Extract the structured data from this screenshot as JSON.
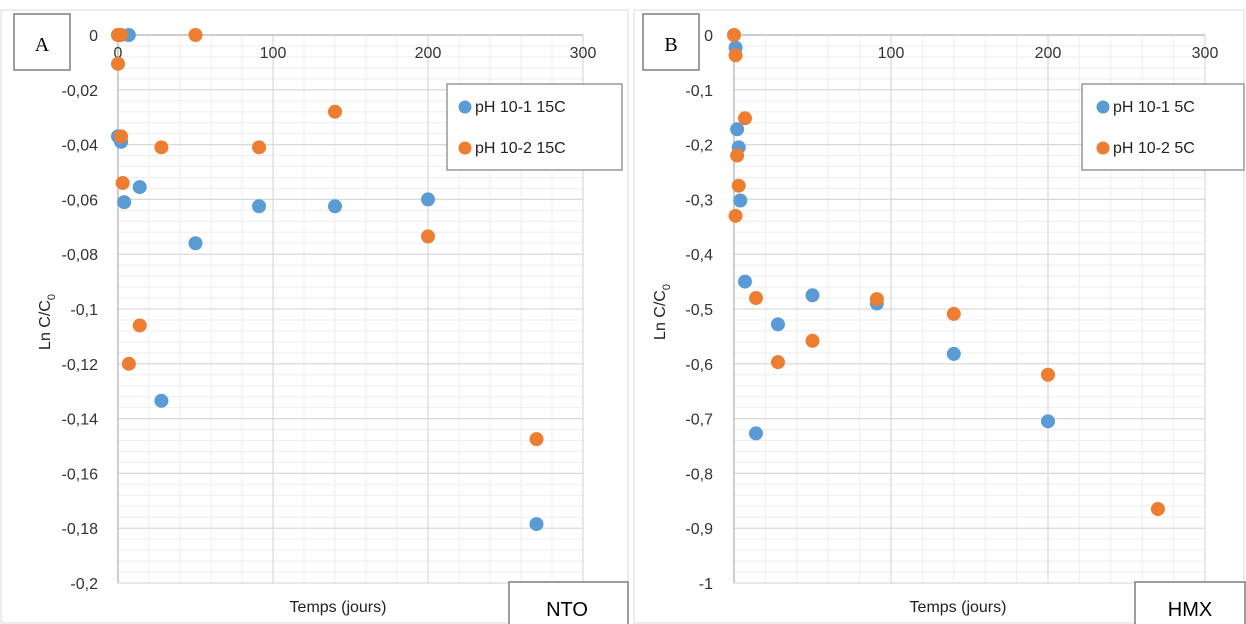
{
  "colors": {
    "series1": "#5B9BD5",
    "series2": "#ED7D31",
    "grid_major": "#D9D9D9",
    "grid_minor": "#EEEEEE",
    "axis": "#BFBFBF"
  },
  "chart_data": [
    {
      "type": "scatter",
      "panel_label": "A",
      "compound_label": "NTO",
      "xlabel": "Temps (jours)",
      "ylabel_main": "Ln C/C",
      "ylabel_sub": "0",
      "xlim": [
        0,
        300
      ],
      "ylim": [
        -0.2,
        0
      ],
      "x_ticks": [
        0,
        100,
        200,
        300
      ],
      "y_ticks": [
        0,
        -0.02,
        -0.04,
        -0.06,
        -0.08,
        -0.1,
        -0.12,
        -0.14,
        -0.16,
        -0.18,
        -0.2
      ],
      "y_tick_labels": [
        "0",
        "-0,02",
        "-0,04",
        "-0,06",
        "-0,08",
        "-0,1",
        "-0,12",
        "-0,14",
        "-0,16",
        "-0,18",
        "-0,2"
      ],
      "x_tick_labels": [
        "0",
        "100",
        "200",
        "300"
      ],
      "grid": true,
      "legend_position": "top-right",
      "series": [
        {
          "name": "pH 10-1 15C",
          "color_key": "series1",
          "points": [
            [
              0,
              0
            ],
            [
              7,
              0
            ],
            [
              0,
              -0.037
            ],
            [
              2,
              -0.039
            ],
            [
              4,
              -0.061
            ],
            [
              14,
              -0.0555
            ],
            [
              50,
              -0.076
            ],
            [
              28,
              -0.1335
            ],
            [
              91,
              -0.0625
            ],
            [
              140,
              -0.0625
            ],
            [
              200,
              -0.06
            ],
            [
              270,
              -0.1785
            ]
          ]
        },
        {
          "name": "pH 10-2 15C",
          "color_key": "series2",
          "points": [
            [
              0,
              0
            ],
            [
              2,
              0
            ],
            [
              50,
              0
            ],
            [
              0,
              -0.0105
            ],
            [
              2,
              -0.037
            ],
            [
              3,
              -0.054
            ],
            [
              14,
              -0.106
            ],
            [
              7,
              -0.12
            ],
            [
              28,
              -0.041
            ],
            [
              91,
              -0.041
            ],
            [
              140,
              -0.028
            ],
            [
              200,
              -0.0735
            ],
            [
              270,
              -0.1475
            ]
          ]
        }
      ]
    },
    {
      "type": "scatter",
      "panel_label": "B",
      "compound_label": "HMX",
      "xlabel": "Temps (jours)",
      "ylabel_main": "Ln C/C",
      "ylabel_sub": "0",
      "xlim": [
        0,
        300
      ],
      "ylim": [
        -1,
        0
      ],
      "x_ticks": [
        0,
        100,
        200,
        300
      ],
      "y_ticks": [
        0,
        -0.1,
        -0.2,
        -0.3,
        -0.4,
        -0.5,
        -0.6,
        -0.7,
        -0.8,
        -0.9,
        -1
      ],
      "y_tick_labels": [
        "0",
        "-0,1",
        "-0,2",
        "-0,3",
        "-0,4",
        "-0,5",
        "-0,6",
        "-0,7",
        "-0,8",
        "-0,9",
        "-1"
      ],
      "x_tick_labels": [
        "0",
        "100",
        "200",
        "300"
      ],
      "grid": true,
      "legend_position": "top-right",
      "series": [
        {
          "name": "pH 10-1 5C",
          "color_key": "series1",
          "points": [
            [
              1,
              -0.023
            ],
            [
              2,
              -0.172
            ],
            [
              3,
              -0.205
            ],
            [
              4,
              -0.302
            ],
            [
              7,
              -0.45
            ],
            [
              14,
              -0.727
            ],
            [
              28,
              -0.528
            ],
            [
              50,
              -0.475
            ],
            [
              91,
              -0.49
            ],
            [
              140,
              -0.582
            ],
            [
              200,
              -0.705
            ]
          ]
        },
        {
          "name": "pH 10-2 5C",
          "color_key": "series2",
          "points": [
            [
              0,
              0
            ],
            [
              1,
              -0.037
            ],
            [
              2,
              -0.22
            ],
            [
              3,
              -0.275
            ],
            [
              1,
              -0.33
            ],
            [
              7,
              -0.152
            ],
            [
              14,
              -0.48
            ],
            [
              28,
              -0.597
            ],
            [
              50,
              -0.558
            ],
            [
              91,
              -0.482
            ],
            [
              140,
              -0.509
            ],
            [
              200,
              -0.62
            ],
            [
              270,
              -0.865
            ]
          ]
        }
      ]
    }
  ]
}
